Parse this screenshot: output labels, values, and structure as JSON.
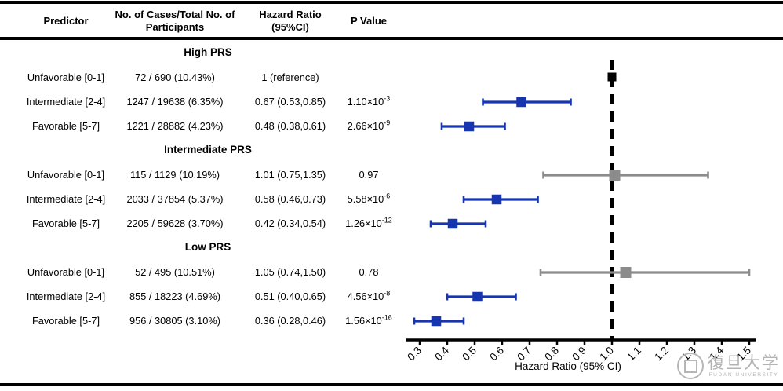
{
  "table": {
    "headers": {
      "predictor": "Predictor",
      "cases": "No. of Cases/Total No. of Participants",
      "hazard_ratio": "Hazard Ratio (95%CI)",
      "p_value": "P Value"
    }
  },
  "chart_data": {
    "type": "forest",
    "xlabel": "Hazard Ratio (95% CI)",
    "xlim": [
      0.3,
      1.5
    ],
    "x_ticks": [
      "0.3",
      "0.4",
      "0.5",
      "0.6",
      "0.7",
      "0.8",
      "0.9",
      "1.0",
      "1.1",
      "1.2",
      "1.3",
      "1.4",
      "1.5"
    ],
    "reference_line": 1.0,
    "colors": {
      "significant": "#1635AE",
      "nonsignificant": "#8C8C8C",
      "reference": "#000000"
    },
    "groups": [
      {
        "label": "High PRS",
        "rows": [
          {
            "predictor": "Unfavorable [0-1]",
            "cases": "72 / 690 (10.43%)",
            "hazard_ratio": "1 (reference)",
            "p_value": "",
            "p_exponent": "",
            "hr": 1.0,
            "ci_low": null,
            "ci_high": null,
            "marker": "reference"
          },
          {
            "predictor": "Intermediate [2-4]",
            "cases": "1247 / 19638 (6.35%)",
            "hazard_ratio": "0.67 (0.53,0.85)",
            "p_value": "1.10×10",
            "p_exponent": "-3",
            "hr": 0.67,
            "ci_low": 0.53,
            "ci_high": 0.85,
            "marker": "significant"
          },
          {
            "predictor": "Favorable [5-7]",
            "cases": "1221 / 28882 (4.23%)",
            "hazard_ratio": "0.48 (0.38,0.61)",
            "p_value": "2.66×10",
            "p_exponent": "-9",
            "hr": 0.48,
            "ci_low": 0.38,
            "ci_high": 0.61,
            "marker": "significant"
          }
        ]
      },
      {
        "label": "Intermediate PRS",
        "rows": [
          {
            "predictor": "Unfavorable [0-1]",
            "cases": "115 / 1129 (10.19%)",
            "hazard_ratio": "1.01 (0.75,1.35)",
            "p_value": "0.97",
            "p_exponent": "",
            "hr": 1.01,
            "ci_low": 0.75,
            "ci_high": 1.35,
            "marker": "nonsignificant"
          },
          {
            "predictor": "Intermediate [2-4]",
            "cases": "2033 / 37854 (5.37%)",
            "hazard_ratio": "0.58 (0.46,0.73)",
            "p_value": "5.58×10",
            "p_exponent": "-6",
            "hr": 0.58,
            "ci_low": 0.46,
            "ci_high": 0.73,
            "marker": "significant"
          },
          {
            "predictor": "Favorable [5-7]",
            "cases": "2205 / 59628 (3.70%)",
            "hazard_ratio": "0.42 (0.34,0.54)",
            "p_value": "1.26×10",
            "p_exponent": "-12",
            "hr": 0.42,
            "ci_low": 0.34,
            "ci_high": 0.54,
            "marker": "significant"
          }
        ]
      },
      {
        "label": "Low PRS",
        "rows": [
          {
            "predictor": "Unfavorable [0-1]",
            "cases": "52 / 495 (10.51%)",
            "hazard_ratio": "1.05 (0.74,1.50)",
            "p_value": "0.78",
            "p_exponent": "",
            "hr": 1.05,
            "ci_low": 0.74,
            "ci_high": 1.5,
            "marker": "nonsignificant"
          },
          {
            "predictor": "Intermediate [2-4]",
            "cases": "855 / 18223 (4.69%)",
            "hazard_ratio": "0.51 (0.40,0.65)",
            "p_value": "4.56×10",
            "p_exponent": "-8",
            "hr": 0.51,
            "ci_low": 0.4,
            "ci_high": 0.65,
            "marker": "significant"
          },
          {
            "predictor": "Favorable [5-7]",
            "cases": "956 / 30805 (3.10%)",
            "hazard_ratio": "0.36 (0.28,0.46)",
            "p_value": "1.56×10",
            "p_exponent": "-16",
            "hr": 0.36,
            "ci_low": 0.28,
            "ci_high": 0.46,
            "marker": "significant"
          }
        ]
      }
    ]
  },
  "watermark": {
    "cn": "復旦大学",
    "en": "FUDAN UNIVERSITY"
  }
}
